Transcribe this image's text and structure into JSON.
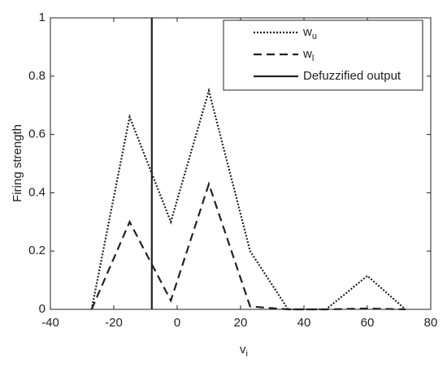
{
  "chart_data": {
    "type": "line",
    "xlabel": "v",
    "xlabel_sub": "i",
    "ylabel": "Firing strength",
    "x": [
      -27,
      -15,
      -2,
      10,
      23,
      35,
      47,
      60,
      72
    ],
    "series": [
      {
        "name": "w",
        "name_sub": "u",
        "color": "#222222",
        "dash": "dotted",
        "values": [
          0,
          0.66,
          0.3,
          0.75,
          0.2,
          0,
          0,
          0.115,
          0
        ]
      },
      {
        "name": "w",
        "name_sub": "l",
        "color": "#222222",
        "dash": "dashed",
        "values": [
          0,
          0.3,
          0.03,
          0.43,
          0.01,
          0,
          0,
          0.003,
          0
        ]
      },
      {
        "name": "Defuzzified output",
        "color": "#222222",
        "dash": "solid",
        "x": [
          -8,
          -8
        ],
        "values": [
          0,
          1
        ]
      }
    ],
    "xlim": [
      -40,
      80
    ],
    "xticks": [
      -40,
      -20,
      0,
      20,
      40,
      60,
      80
    ],
    "ylim": [
      0,
      1
    ],
    "yticks": [
      0,
      0.2,
      0.4,
      0.6,
      0.8,
      1
    ],
    "legend": "upper right"
  }
}
